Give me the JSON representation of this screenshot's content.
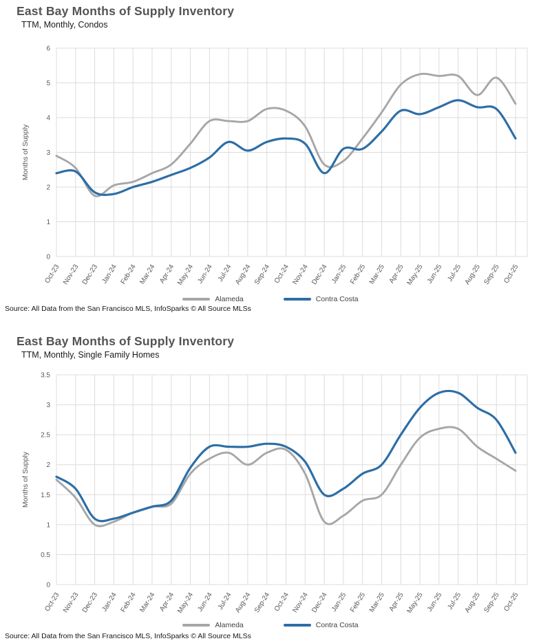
{
  "page": {
    "background": "#ffffff"
  },
  "chart_data": [
    {
      "id": "condos",
      "type": "line",
      "title": "East Bay Months of Supply Inventory",
      "subtitle": "TTM, Monthly, Condos",
      "ylabel": "Months of Supply",
      "source": "Source: All Data from the San Francisco MLS, InfoSparks © All Source MLSs",
      "ylim": [
        0,
        6
      ],
      "ystep": 1,
      "grid": true,
      "legend_position": "bottom",
      "categories": [
        "Oct-23",
        "Nov-23",
        "Dec-23",
        "Jan-24",
        "Feb-24",
        "Mar-24",
        "Apr-24",
        "May-24",
        "Jun-24",
        "Jul-24",
        "Aug-24",
        "Sep-24",
        "Oct-24",
        "Nov-24",
        "Dec-24",
        "Jan-25",
        "Feb-25",
        "Mar-25",
        "Apr-25",
        "May-25",
        "Jun-25",
        "Jul-25",
        "Aug-25",
        "Sep-25",
        "Oct-25"
      ],
      "series": [
        {
          "name": "Alameda",
          "color": "#a6a6a6",
          "values": [
            2.9,
            2.55,
            1.75,
            2.05,
            2.15,
            2.4,
            2.65,
            3.25,
            3.9,
            3.9,
            3.9,
            4.25,
            4.2,
            3.75,
            2.65,
            2.75,
            3.4,
            4.15,
            4.95,
            5.25,
            5.2,
            5.2,
            4.65,
            5.15,
            4.4
          ]
        },
        {
          "name": "Contra Costa",
          "color": "#2d6ea6",
          "values": [
            2.4,
            2.45,
            1.85,
            1.8,
            2.0,
            2.15,
            2.35,
            2.55,
            2.85,
            3.3,
            3.05,
            3.3,
            3.4,
            3.25,
            2.4,
            3.1,
            3.1,
            3.6,
            4.2,
            4.1,
            4.3,
            4.5,
            4.3,
            4.25,
            3.4
          ]
        }
      ]
    },
    {
      "id": "single-family",
      "type": "line",
      "title": "East Bay Months of Supply Inventory",
      "subtitle": "TTM, Monthly, Single Family Homes",
      "ylabel": "Months of Supply",
      "source": "Source: All Data from the San Francisco MLS, InfoSparks © All Source MLSs",
      "ylim": [
        0,
        3.5
      ],
      "ystep": 0.5,
      "grid": true,
      "legend_position": "bottom",
      "categories": [
        "Oct-23",
        "Nov-23",
        "Dec-23",
        "Jan-24",
        "Feb-24",
        "Mar-24",
        "Apr-24",
        "May-24",
        "Jun-24",
        "Jul-24",
        "Aug-24",
        "Sep-24",
        "Oct-24",
        "Nov-24",
        "Dec-24",
        "Jan-25",
        "Feb-25",
        "Mar-25",
        "Apr-25",
        "May-25",
        "Jun-25",
        "Jul-25",
        "Aug-25",
        "Sep-25",
        "Oct-25"
      ],
      "series": [
        {
          "name": "Alameda",
          "color": "#a6a6a6",
          "values": [
            1.75,
            1.45,
            1.0,
            1.05,
            1.2,
            1.3,
            1.35,
            1.85,
            2.1,
            2.2,
            2.0,
            2.2,
            2.25,
            1.85,
            1.05,
            1.15,
            1.4,
            1.5,
            2.0,
            2.45,
            2.6,
            2.6,
            2.3,
            2.1,
            1.9
          ]
        },
        {
          "name": "Contra Costa",
          "color": "#2d6ea6",
          "values": [
            1.8,
            1.6,
            1.1,
            1.1,
            1.2,
            1.3,
            1.4,
            1.95,
            2.3,
            2.3,
            2.3,
            2.35,
            2.3,
            2.05,
            1.5,
            1.6,
            1.85,
            2.0,
            2.5,
            2.95,
            3.2,
            3.2,
            2.95,
            2.75,
            2.2
          ]
        }
      ]
    }
  ]
}
